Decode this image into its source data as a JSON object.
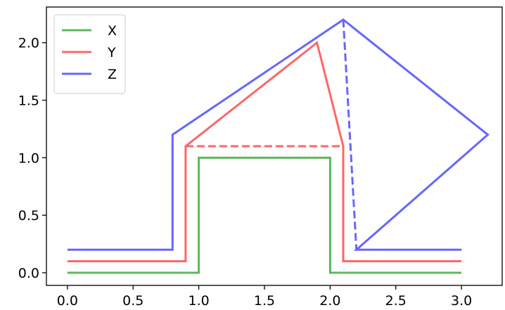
{
  "chart_data": {
    "type": "line",
    "title": "",
    "xlabel": "",
    "ylabel": "",
    "xlim": [
      -0.16,
      3.31
    ],
    "ylim": [
      -0.11,
      2.31
    ],
    "x_ticks": [
      "0.0",
      "0.5",
      "1.0",
      "1.5",
      "2.0",
      "2.5",
      "3.0"
    ],
    "y_ticks": [
      "0.0",
      "0.5",
      "1.0",
      "1.5",
      "2.0"
    ],
    "grid": false,
    "legend_position": "top-left",
    "series": [
      {
        "name": "X",
        "color": "#5cb85c",
        "points": [
          [
            0,
            0
          ],
          [
            1,
            0
          ],
          [
            1,
            1
          ],
          [
            2,
            1
          ],
          [
            2,
            0
          ],
          [
            3,
            0
          ]
        ],
        "dashed_segments": []
      },
      {
        "name": "Y",
        "color": "#ff6666",
        "points": [
          [
            0,
            0.1
          ],
          [
            0.9,
            0.1
          ],
          [
            0.9,
            1.1
          ],
          [
            1.9,
            2.0
          ],
          [
            2.1,
            1.1
          ],
          [
            2.1,
            0.1
          ],
          [
            3,
            0.1
          ]
        ],
        "dashed_segments": [
          [
            [
              0.9,
              1.1
            ],
            [
              2.1,
              1.1
            ]
          ]
        ]
      },
      {
        "name": "Z",
        "color": "#6666ff",
        "points": [
          [
            0,
            0.2
          ],
          [
            0.8,
            0.2
          ],
          [
            0.8,
            1.2
          ],
          [
            2.1,
            2.2
          ],
          [
            3.2,
            1.2
          ],
          [
            2.2,
            0.2
          ],
          [
            3,
            0.2
          ]
        ],
        "dashed_segments": [
          [
            [
              2.1,
              2.2
            ],
            [
              2.2,
              0.2
            ]
          ]
        ]
      }
    ]
  }
}
